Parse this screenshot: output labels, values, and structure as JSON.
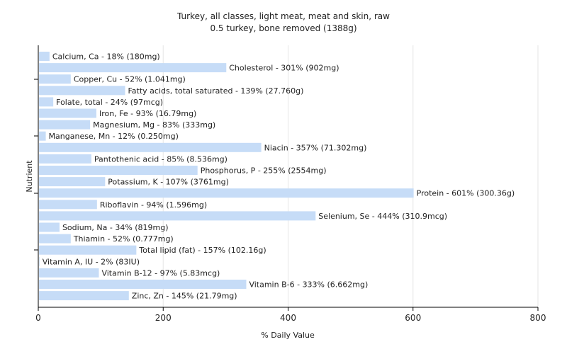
{
  "chart_data": {
    "type": "bar",
    "orientation": "horizontal",
    "title": "Turkey, all classes, light meat, meat and skin, raw",
    "subtitle": "0.5 turkey, bone removed (1388g)",
    "xlabel": "% Daily Value",
    "ylabel": "Nutrient",
    "xlim": [
      0,
      800
    ],
    "xticks": [
      "0",
      "200",
      "400",
      "600",
      "800"
    ],
    "grid": true,
    "bar_color": "#c6dcf7",
    "bars": [
      {
        "value": 18,
        "label": "Calcium, Ca - 18% (180mg)"
      },
      {
        "value": 301,
        "label": "Cholesterol - 301% (902mg)"
      },
      {
        "value": 52,
        "label": "Copper, Cu - 52% (1.041mg)"
      },
      {
        "value": 139,
        "label": "Fatty acids, total saturated - 139% (27.760g)"
      },
      {
        "value": 24,
        "label": "Folate, total - 24% (97mcg)"
      },
      {
        "value": 93,
        "label": "Iron, Fe - 93% (16.79mg)"
      },
      {
        "value": 83,
        "label": "Magnesium, Mg - 83% (333mg)"
      },
      {
        "value": 12,
        "label": "Manganese, Mn - 12% (0.250mg)"
      },
      {
        "value": 357,
        "label": "Niacin - 357% (71.302mg)"
      },
      {
        "value": 85,
        "label": "Pantothenic acid - 85% (8.536mg)"
      },
      {
        "value": 255,
        "label": "Phosphorus, P - 255% (2554mg)"
      },
      {
        "value": 107,
        "label": "Potassium, K - 107% (3761mg)"
      },
      {
        "value": 601,
        "label": "Protein - 601% (300.36g)"
      },
      {
        "value": 94,
        "label": "Riboflavin - 94% (1.596mg)"
      },
      {
        "value": 444,
        "label": "Selenium, Se - 444% (310.9mcg)"
      },
      {
        "value": 34,
        "label": "Sodium, Na - 34% (819mg)"
      },
      {
        "value": 52,
        "label": "Thiamin - 52% (0.777mg)"
      },
      {
        "value": 157,
        "label": "Total lipid (fat) - 157% (102.16g)"
      },
      {
        "value": 2,
        "label": "Vitamin A, IU - 2% (83IU)"
      },
      {
        "value": 97,
        "label": "Vitamin B-12 - 97% (5.83mcg)"
      },
      {
        "value": 333,
        "label": "Vitamin B-6 - 333% (6.662mg)"
      },
      {
        "value": 145,
        "label": "Zinc, Zn - 145% (21.79mg)"
      }
    ]
  }
}
